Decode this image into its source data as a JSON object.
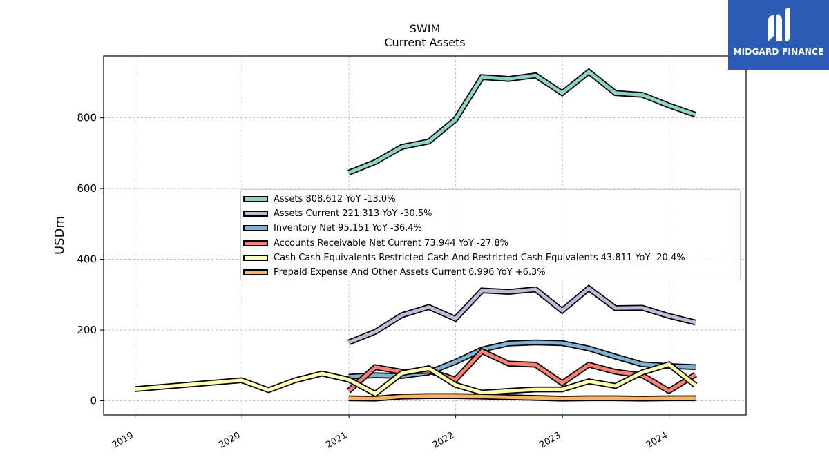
{
  "title": "SWIM",
  "subtitle": "Current  Assets",
  "logo": {
    "text": "MIDGARD FINANCE",
    "icon": "midgard-logo-icon",
    "background": "#2c5bb3"
  },
  "chart_data": {
    "type": "line",
    "ylabel": "USDm",
    "xlabel": "",
    "xlim": [
      "2018-09-15",
      "2024-09-20"
    ],
    "ylim": [
      -40,
      975
    ],
    "yticks": [
      0,
      200,
      400,
      600,
      800
    ],
    "ytick_labels": [
      "0",
      "200",
      "400",
      "600",
      "800"
    ],
    "xticks": [
      "2019-01-01",
      "2020-01-01",
      "2021-01-01",
      "2022-01-01",
      "2023-01-01",
      "2024-01-01"
    ],
    "xtick_labels": [
      "2019",
      "2020",
      "2021",
      "2022",
      "2023",
      "2024"
    ],
    "grid": true,
    "legend_position": "center",
    "series": [
      {
        "name": "Assets",
        "legend": "Assets  808.612 YoY -13.0%",
        "color": "#8dd3c7",
        "points": [
          [
            "2020-12-31",
            645
          ],
          [
            "2021-04-01",
            675
          ],
          [
            "2021-07-01",
            718
          ],
          [
            "2021-10-01",
            733
          ],
          [
            "2021-12-31",
            795
          ],
          [
            "2022-04-01",
            915
          ],
          [
            "2022-07-01",
            910
          ],
          [
            "2022-10-01",
            920
          ],
          [
            "2022-12-31",
            870
          ],
          [
            "2023-04-01",
            930
          ],
          [
            "2023-07-01",
            870
          ],
          [
            "2023-10-01",
            865
          ],
          [
            "2023-12-31",
            835
          ],
          [
            "2024-03-31",
            808.612
          ]
        ]
      },
      {
        "name": "Assets Current",
        "legend": "Assets Current  221.313 YoY -30.5%",
        "color": "#bebada",
        "points": [
          [
            "2020-12-31",
            165
          ],
          [
            "2021-04-01",
            195
          ],
          [
            "2021-07-01",
            242
          ],
          [
            "2021-10-01",
            265
          ],
          [
            "2021-12-31",
            232
          ],
          [
            "2022-04-01",
            312
          ],
          [
            "2022-07-01",
            308
          ],
          [
            "2022-10-01",
            315
          ],
          [
            "2022-12-31",
            255
          ],
          [
            "2023-04-01",
            318
          ],
          [
            "2023-07-01",
            262
          ],
          [
            "2023-10-01",
            263
          ],
          [
            "2023-12-31",
            240
          ],
          [
            "2024-03-31",
            221.313
          ]
        ]
      },
      {
        "name": "Inventory Net",
        "legend": "Inventory Net  95.151 YoY -36.4%",
        "color": "#80b1d3",
        "points": [
          [
            "2020-12-31",
            68
          ],
          [
            "2021-04-01",
            72
          ],
          [
            "2021-07-01",
            70
          ],
          [
            "2021-10-01",
            80
          ],
          [
            "2021-12-31",
            110
          ],
          [
            "2022-04-01",
            145
          ],
          [
            "2022-07-01",
            162
          ],
          [
            "2022-10-01",
            165
          ],
          [
            "2022-12-31",
            163
          ],
          [
            "2023-04-01",
            148
          ],
          [
            "2023-07-01",
            125
          ],
          [
            "2023-10-01",
            103
          ],
          [
            "2023-12-31",
            98
          ],
          [
            "2024-03-31",
            95.151
          ]
        ]
      },
      {
        "name": "Accounts Receivable Net Current",
        "legend": "Accounts Receivable Net Current  73.944 YoY -27.8%",
        "color": "#fb8072",
        "points": [
          [
            "2020-12-31",
            28
          ],
          [
            "2021-04-01",
            95
          ],
          [
            "2021-07-01",
            82
          ],
          [
            "2021-10-01",
            85
          ],
          [
            "2021-12-31",
            60
          ],
          [
            "2022-04-01",
            140
          ],
          [
            "2022-07-01",
            105
          ],
          [
            "2022-10-01",
            102
          ],
          [
            "2022-12-31",
            50
          ],
          [
            "2023-04-01",
            102
          ],
          [
            "2023-07-01",
            82
          ],
          [
            "2023-10-01",
            72
          ],
          [
            "2023-12-31",
            28
          ],
          [
            "2024-03-31",
            73.944
          ]
        ]
      },
      {
        "name": "Cash Cash Equivalents Restricted Cash And Restricted Cash Equivalents",
        "legend": "Cash Cash Equivalents Restricted Cash And Restricted Cash Equivalents  43.811 YoY -20.4%",
        "color": "#ffffb3",
        "points": [
          [
            "2018-12-31",
            33
          ],
          [
            "2019-12-31",
            58
          ],
          [
            "2020-04-01",
            30
          ],
          [
            "2020-07-01",
            58
          ],
          [
            "2020-10-01",
            77
          ],
          [
            "2020-12-31",
            60
          ],
          [
            "2021-04-01",
            20
          ],
          [
            "2021-07-01",
            78
          ],
          [
            "2021-10-01",
            92
          ],
          [
            "2021-12-31",
            45
          ],
          [
            "2022-04-01",
            23
          ],
          [
            "2022-07-01",
            28
          ],
          [
            "2022-10-01",
            32
          ],
          [
            "2022-12-31",
            32
          ],
          [
            "2023-04-01",
            55
          ],
          [
            "2023-07-01",
            42
          ],
          [
            "2023-10-01",
            80
          ],
          [
            "2023-12-31",
            103
          ],
          [
            "2024-03-31",
            43.811
          ]
        ]
      },
      {
        "name": "Prepaid Expense And Other Assets Current",
        "legend": "Prepaid Expense And Other Assets Current  6.996 YoY +6.3%",
        "color": "#fdb462",
        "points": [
          [
            "2020-12-31",
            7
          ],
          [
            "2021-04-01",
            6
          ],
          [
            "2021-07-01",
            12
          ],
          [
            "2021-10-01",
            13
          ],
          [
            "2021-12-31",
            13
          ],
          [
            "2022-04-01",
            12
          ],
          [
            "2022-07-01",
            10
          ],
          [
            "2022-10-01",
            8
          ],
          [
            "2022-12-31",
            6
          ],
          [
            "2023-04-01",
            7
          ],
          [
            "2023-07-01",
            7
          ],
          [
            "2023-10-01",
            6
          ],
          [
            "2023-12-31",
            7
          ],
          [
            "2024-03-31",
            6.996
          ]
        ]
      }
    ]
  }
}
